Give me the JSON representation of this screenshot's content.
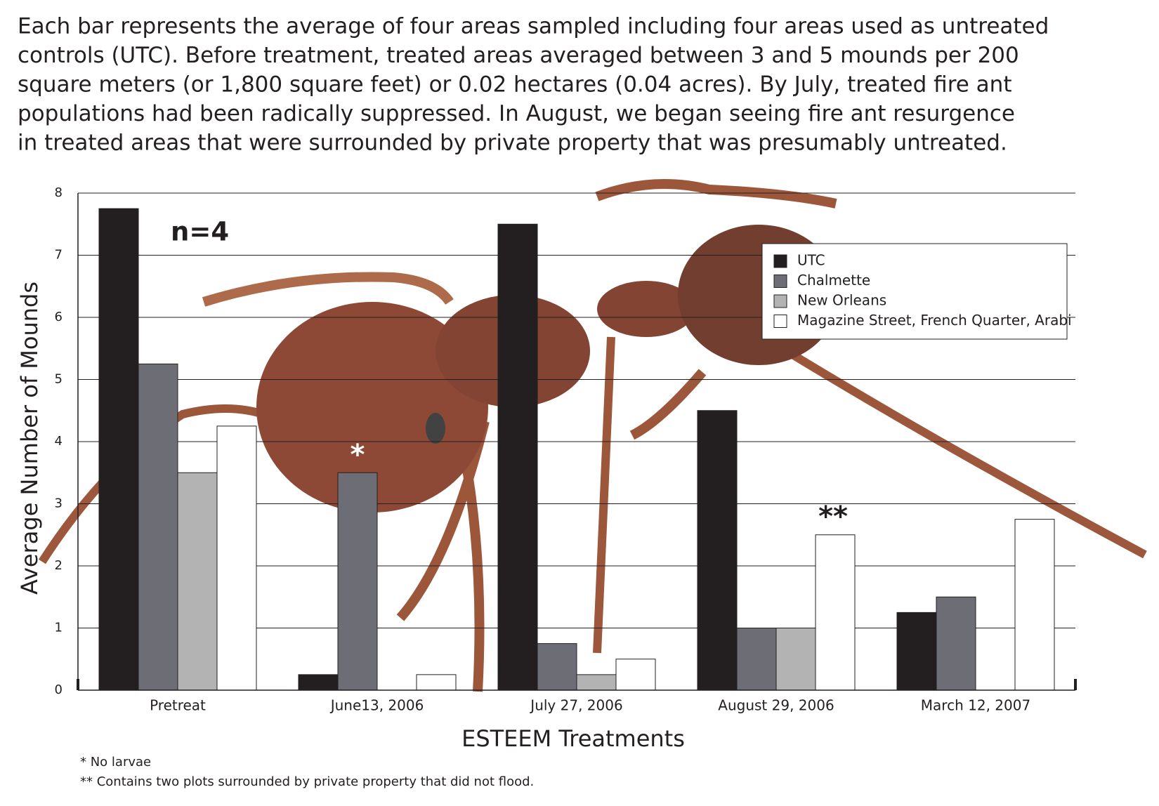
{
  "chart_data": {
    "type": "bar",
    "title_lines": [
      "Each bar represents the average of four areas sampled including four areas used as untreated",
      "controls (UTC). Before treatment, treated areas averaged between 3 and 5 mounds per 200",
      "square meters (or 1,800 square feet) or 0.02 hectares (0.04 acres). By July, treated fire ant",
      "populations had been radically suppressed. In August, we began seeing fire ant resurgence",
      "in treated areas that were surrounded by private property that was presumably untreated."
    ],
    "x_label": "ESTEEM Treatments",
    "y_label": "Average Number of Mounds",
    "categories": [
      "Pretreat",
      "June13, 2006",
      "July 27, 2006",
      "August 29, 2006",
      "March 12, 2007"
    ],
    "series": [
      {
        "name": "UTC",
        "color": "#231f20",
        "values": [
          7.75,
          0.25,
          7.5,
          4.5,
          1.25
        ]
      },
      {
        "name": "Chalmette",
        "color": "#6d6e75",
        "values": [
          5.25,
          3.5,
          0.75,
          1,
          1.5
        ]
      },
      {
        "name": "New Orleans",
        "color": "#b3b3b3",
        "values": [
          3.5,
          0,
          0.25,
          1,
          0
        ]
      },
      {
        "name": "Magazine Street, French Quarter, Arabi",
        "color": "#ffffff",
        "values": [
          4.25,
          0.25,
          0.5,
          2.5,
          2.75
        ]
      }
    ],
    "ylim": [
      0,
      8
    ],
    "yticks": [
      0,
      1,
      2,
      3,
      4,
      5,
      6,
      7,
      8
    ],
    "grid": true,
    "legend": "upper right",
    "annotations": {
      "sample": "n=4",
      "star1": "*",
      "star2": "**"
    },
    "footnotes": [
      "* No larvae",
      "** Contains two plots surrounded by private property that did not flood."
    ]
  }
}
